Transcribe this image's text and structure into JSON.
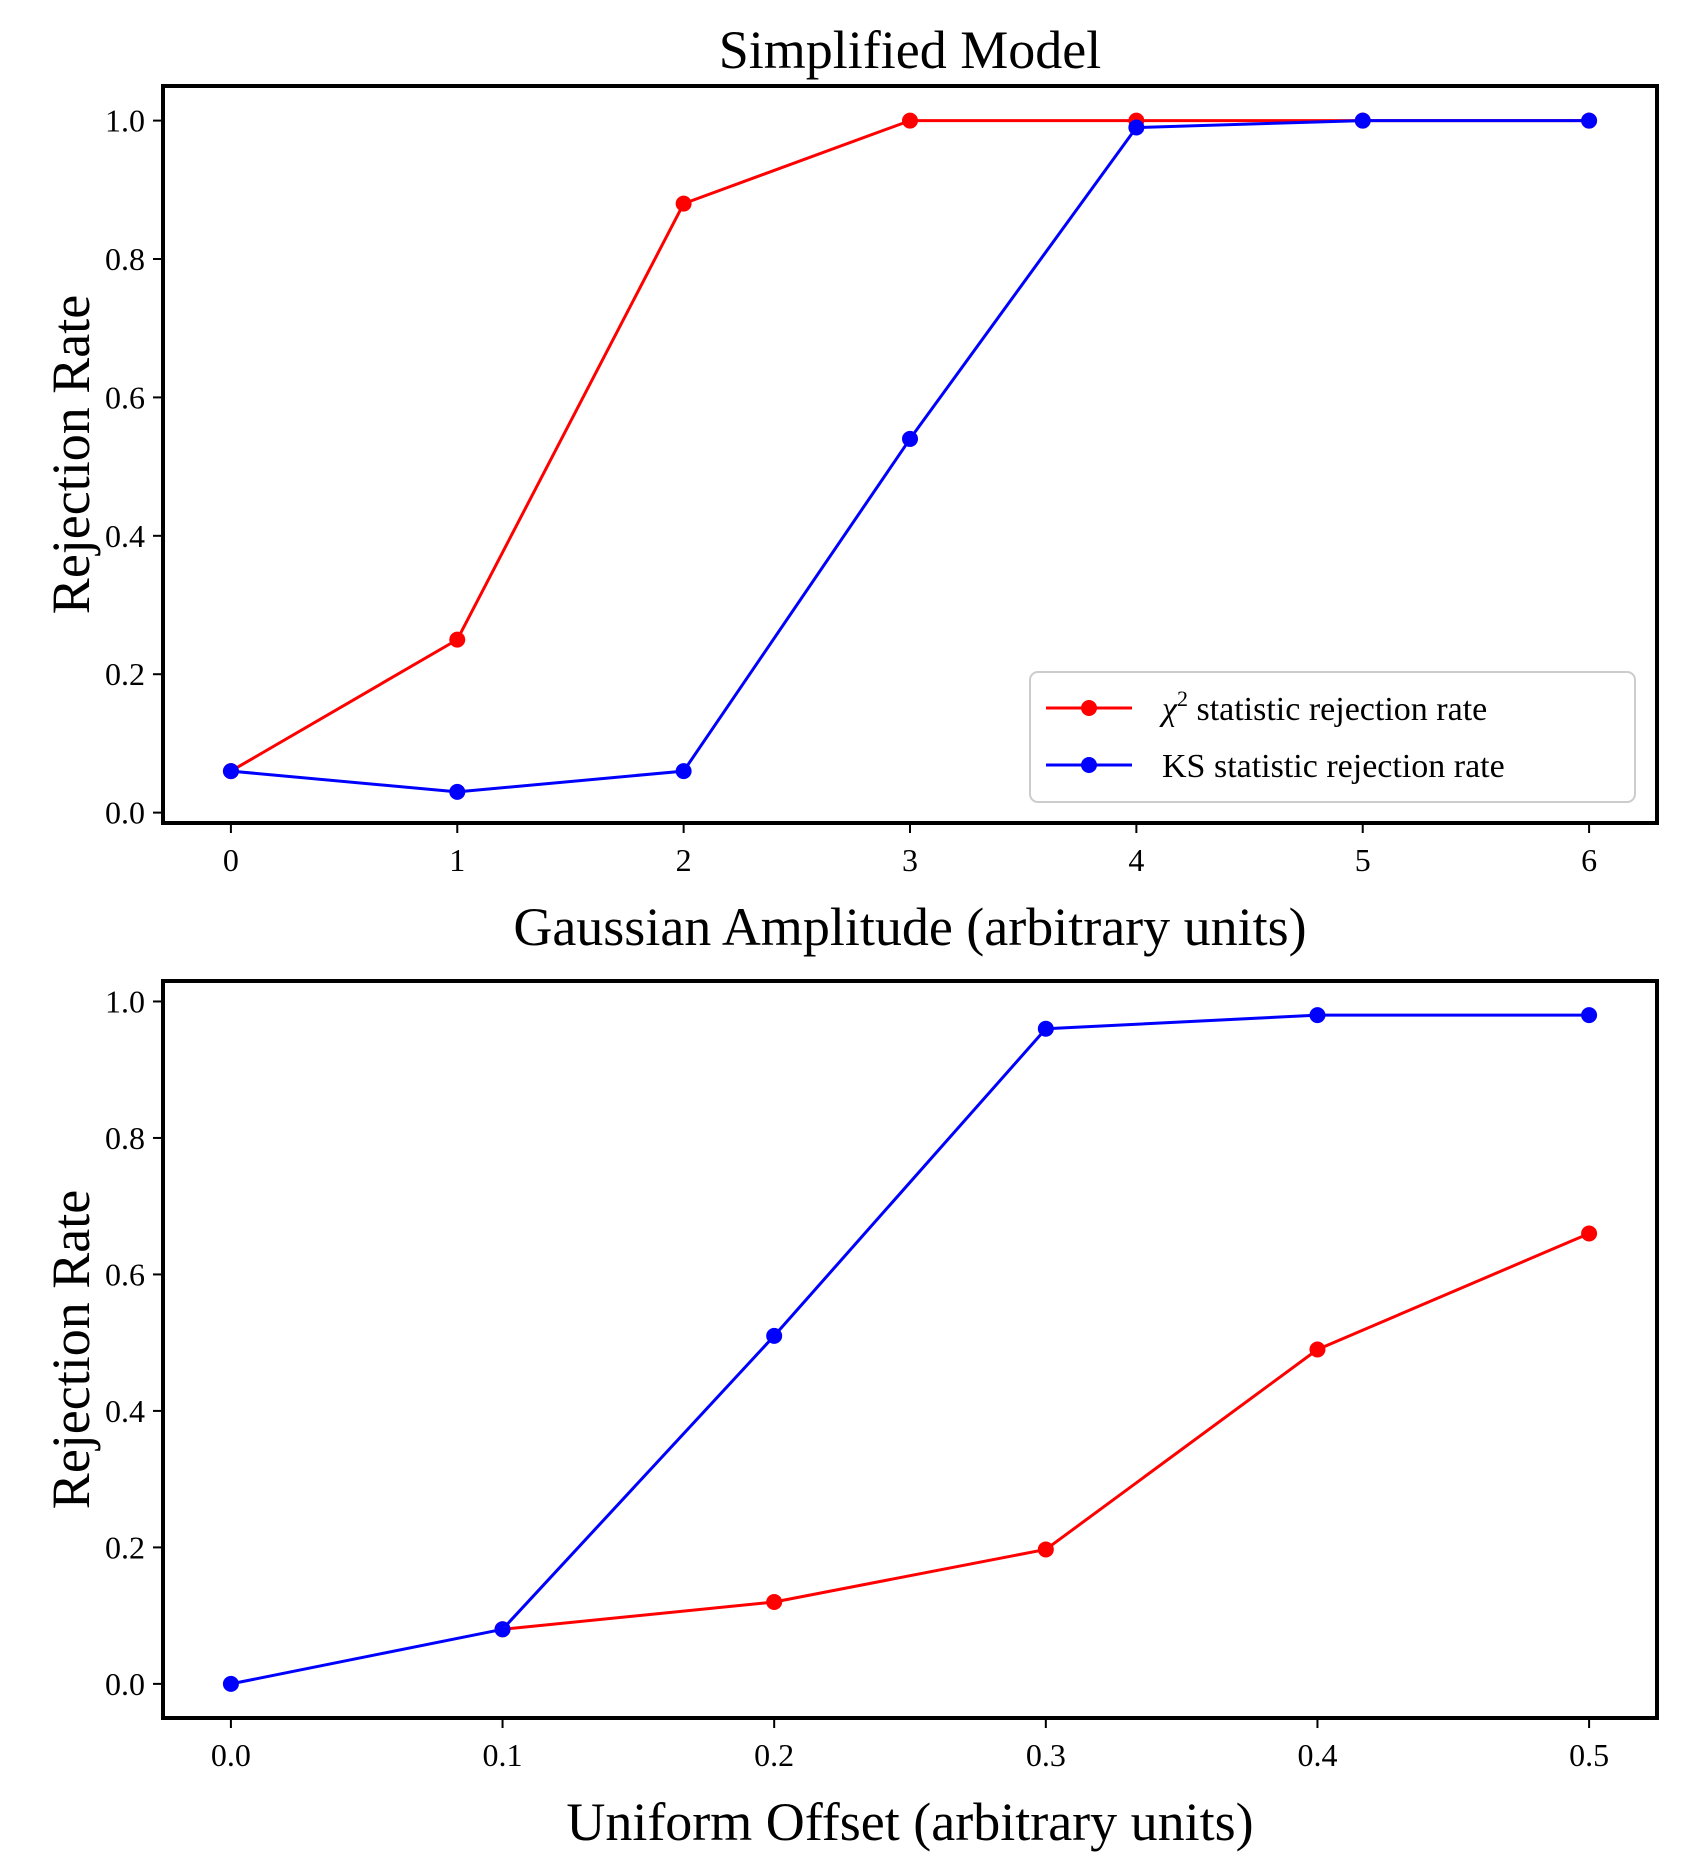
{
  "title": "Simplified Model",
  "colors": {
    "chi2": "#ff0000",
    "ks": "#0000ff",
    "axes": "#000000"
  },
  "legend": {
    "chi2_symbol": "χ",
    "chi2_superscript": "2",
    "chi2_label": " statistic rejection rate",
    "ks_label": "KS statistic rejection rate"
  },
  "chart_data": [
    {
      "type": "line",
      "title": "Simplified Model",
      "xlabel": "Gaussian Amplitude (arbitrary units)",
      "ylabel": "Rejection Rate",
      "xlim": [
        -0.3,
        6.3
      ],
      "ylim": [
        -0.015,
        1.05
      ],
      "xticks": [
        0,
        1,
        2,
        3,
        4,
        5,
        6
      ],
      "xtick_labels": [
        "0",
        "1",
        "2",
        "3",
        "4",
        "5",
        "6"
      ],
      "yticks": [
        0.0,
        0.2,
        0.4,
        0.6,
        0.8,
        1.0
      ],
      "ytick_labels": [
        "0.0",
        "0.2",
        "0.4",
        "0.6",
        "0.8",
        "1.0"
      ],
      "legend_position": "lower-right",
      "series": [
        {
          "name": "chi2 statistic rejection rate",
          "color": "#ff0000",
          "x": [
            0,
            1,
            2,
            3,
            4,
            5,
            6
          ],
          "y": [
            0.06,
            0.25,
            0.88,
            1.0,
            1.0,
            1.0,
            1.0
          ]
        },
        {
          "name": "KS statistic rejection rate",
          "color": "#0000ff",
          "x": [
            0,
            1,
            2,
            3,
            4,
            5,
            6
          ],
          "y": [
            0.06,
            0.03,
            0.06,
            0.54,
            0.99,
            1.0,
            1.0
          ]
        }
      ]
    },
    {
      "type": "line",
      "title": "",
      "xlabel": "Uniform Offset (arbitrary units)",
      "ylabel": "Rejection Rate",
      "xlim": [
        -0.025,
        0.525
      ],
      "ylim": [
        -0.05,
        1.03
      ],
      "xticks": [
        0.0,
        0.1,
        0.2,
        0.3,
        0.4,
        0.5
      ],
      "xtick_labels": [
        "0.0",
        "0.1",
        "0.2",
        "0.3",
        "0.4",
        "0.5"
      ],
      "yticks": [
        0.0,
        0.2,
        0.4,
        0.6,
        0.8,
        1.0
      ],
      "ytick_labels": [
        "0.0",
        "0.2",
        "0.4",
        "0.6",
        "0.8",
        "1.0"
      ],
      "legend_position": "none",
      "series": [
        {
          "name": "chi2 statistic rejection rate",
          "color": "#ff0000",
          "x": [
            0.1,
            0.2,
            0.3,
            0.4,
            0.5
          ],
          "y": [
            0.08,
            0.12,
            0.197,
            0.49,
            0.66
          ]
        },
        {
          "name": "KS statistic rejection rate",
          "color": "#0000ff",
          "x": [
            0.0,
            0.1,
            0.2,
            0.3,
            0.4,
            0.5
          ],
          "y": [
            0.0,
            0.08,
            0.51,
            0.96,
            0.98,
            0.98
          ]
        }
      ]
    }
  ]
}
